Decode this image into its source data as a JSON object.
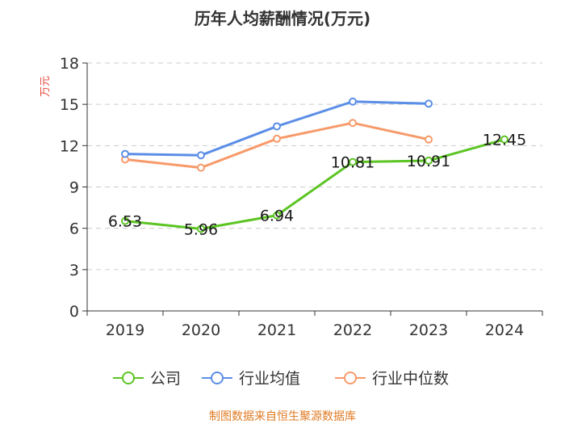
{
  "chart_data": {
    "type": "line",
    "title": "历年人均薪酬情况(万元)",
    "ylabel": "万元",
    "xlabel": "",
    "categories": [
      "2019",
      "2020",
      "2021",
      "2022",
      "2023",
      "2024"
    ],
    "ylim": [
      0,
      18
    ],
    "yticks": [
      0,
      3,
      6,
      9,
      12,
      15,
      18
    ],
    "grid": true,
    "legend_position": "bottom",
    "series": [
      {
        "name": "公司",
        "color": "#5cc524",
        "values": [
          6.53,
          5.96,
          6.94,
          10.81,
          10.91,
          12.45
        ],
        "labels": [
          "6.53",
          "5.96",
          "6.94",
          "10.81",
          "10.91",
          "12.45"
        ]
      },
      {
        "name": "行业均值",
        "color": "#5b8ee6",
        "values": [
          11.4,
          11.3,
          13.4,
          15.2,
          15.05,
          null
        ]
      },
      {
        "name": "行业中位数",
        "color": "#f79a6a",
        "values": [
          11.0,
          10.4,
          12.5,
          13.65,
          12.45,
          null
        ]
      }
    ]
  },
  "source": "制图数据来自恒生聚源数据库"
}
